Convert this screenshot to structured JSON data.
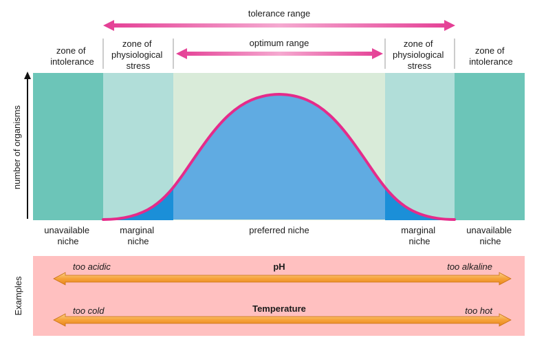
{
  "tolerance_range_label": "tolerance range",
  "optimum_range_label": "optimum range",
  "zones": {
    "left_intolerance": [
      "zone of",
      "intolerance"
    ],
    "left_stress": [
      "zone of",
      "physiological",
      "stress"
    ],
    "right_stress": [
      "zone of",
      "physiological",
      "stress"
    ],
    "right_intolerance": [
      "zone of",
      "intolerance"
    ]
  },
  "y_axis_label": "number of organisms",
  "niches": {
    "left_unavailable": [
      "unavailable",
      "niche"
    ],
    "left_marginal": [
      "marginal",
      "niche"
    ],
    "preferred": "preferred niche",
    "right_marginal": [
      "marginal",
      "niche"
    ],
    "right_unavailable": [
      "unavailable",
      "niche"
    ]
  },
  "examples": {
    "label": "Examples",
    "rows": [
      {
        "title": "pH",
        "left": "too acidic",
        "right": "too alkaline"
      },
      {
        "title": "Temperature",
        "left": "too cold",
        "right": "too hot"
      }
    ]
  },
  "colors": {
    "intolerance_fill": "#6cc5b8",
    "stress_fill": "#b1ded9",
    "optimum_fill": "#d9ebd9",
    "curve_fill": "#60abe2",
    "curve_fill_marginal": "#1b8fd8",
    "curve_stroke": "#e52b8a",
    "arrow_pink": "#e84b9c",
    "examples_bg": "#ffc0c0",
    "example_arrow": "#f7a033"
  }
}
